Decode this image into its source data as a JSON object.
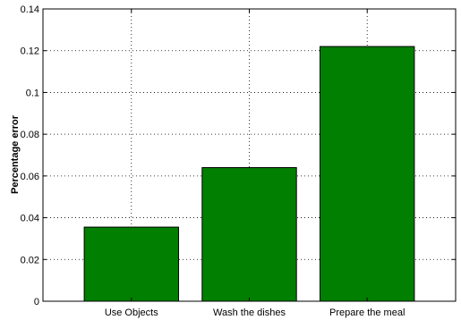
{
  "chart_data": {
    "type": "bar",
    "categories": [
      "Use Objects",
      "Wash the dishes",
      "Prepare the meal"
    ],
    "values": [
      0.0355,
      0.064,
      0.122
    ],
    "ylabel": "Percentage error",
    "xlabel": "",
    "ylim": [
      0,
      0.14
    ],
    "yticks": [
      "0",
      "0.02",
      "0.04",
      "0.06",
      "0.08",
      "0.1",
      "0.12",
      "0.14"
    ],
    "grid": true,
    "bar_color": "#007f00"
  }
}
